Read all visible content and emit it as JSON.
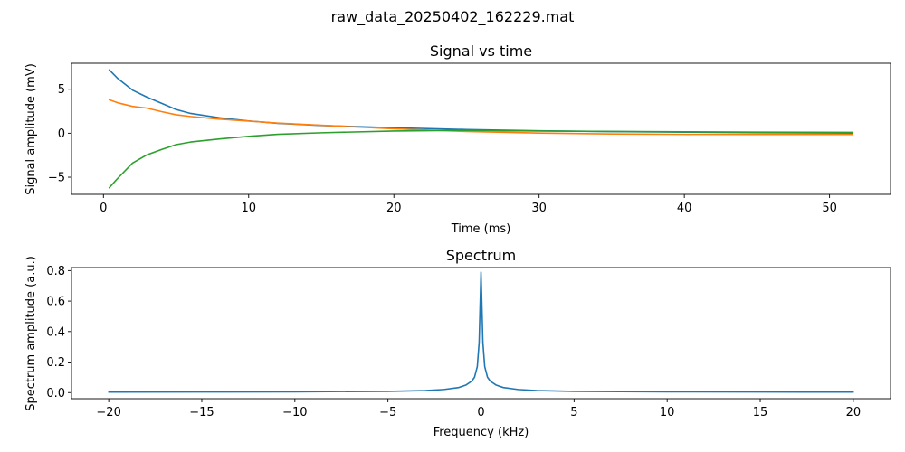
{
  "figure": {
    "suptitle": "raw_data_20250402_162229.mat"
  },
  "chart_data": [
    {
      "type": "line",
      "title": "Signal vs time",
      "xlabel": "Time (ms)",
      "ylabel": "Signal amplitude (mV)",
      "xlim": [
        -2.2,
        54.2
      ],
      "ylim": [
        -6.95,
        7.95
      ],
      "xticks": [
        0,
        10,
        20,
        30,
        40,
        50
      ],
      "yticks": [
        -5,
        0,
        5
      ],
      "xtick_labels": [
        "0",
        "10",
        "20",
        "30",
        "40",
        "50"
      ],
      "ytick_labels": [
        "−5",
        "0",
        "5"
      ],
      "grid": false,
      "series": [
        {
          "color": "#1f77b4",
          "x": [
            0.4,
            1,
            2,
            3,
            4,
            5,
            6,
            8,
            10,
            12,
            15,
            20,
            25,
            30,
            35,
            40,
            45,
            51.6
          ],
          "y": [
            7.2,
            6.2,
            4.9,
            4.1,
            3.4,
            2.7,
            2.25,
            1.75,
            1.4,
            1.12,
            0.88,
            0.62,
            0.42,
            0.28,
            0.18,
            0.12,
            0.07,
            0.02
          ]
        },
        {
          "color": "#ff7f0e",
          "x": [
            0.4,
            1,
            2,
            3,
            4,
            5,
            6,
            8,
            10,
            12,
            15,
            20,
            25,
            30,
            35,
            40,
            45,
            51.6
          ],
          "y": [
            3.8,
            3.45,
            3.05,
            2.85,
            2.45,
            2.1,
            1.9,
            1.6,
            1.38,
            1.15,
            0.9,
            0.5,
            0.2,
            0.02,
            -0.08,
            -0.13,
            -0.14,
            -0.14
          ]
        },
        {
          "color": "#2ca02c",
          "x": [
            0.4,
            1,
            2,
            3,
            4,
            5,
            6,
            8,
            10,
            12,
            15,
            20,
            25,
            30,
            35,
            40,
            45,
            51.6
          ],
          "y": [
            -6.2,
            -5.1,
            -3.4,
            -2.45,
            -1.85,
            -1.3,
            -1.0,
            -0.65,
            -0.35,
            -0.12,
            0.05,
            0.25,
            0.33,
            0.25,
            0.2,
            0.16,
            0.12,
            0.1
          ]
        }
      ]
    },
    {
      "type": "line",
      "title": "Spectrum",
      "xlabel": "Frequency (kHz)",
      "ylabel": "Spectrum amplitude (a.u.)",
      "xlim": [
        -22,
        22
      ],
      "ylim": [
        -0.04,
        0.82
      ],
      "xticks": [
        -20,
        -15,
        -10,
        -5,
        0,
        5,
        10,
        15,
        20
      ],
      "yticks": [
        0,
        0.2,
        0.4,
        0.6,
        0.8
      ],
      "xtick_labels": [
        "−20",
        "−15",
        "−10",
        "−5",
        "0",
        "5",
        "10",
        "15",
        "20"
      ],
      "ytick_labels": [
        "0.0",
        "0.2",
        "0.4",
        "0.6",
        "0.8"
      ],
      "grid": false,
      "series": [
        {
          "color": "#1f77b4",
          "x": [
            -20,
            -15,
            -10,
            -5,
            -3,
            -2,
            -1.2,
            -0.8,
            -0.5,
            -0.35,
            -0.2,
            -0.1,
            0,
            0.1,
            0.2,
            0.35,
            0.5,
            0.8,
            1.2,
            2,
            3,
            5,
            10,
            15,
            20
          ],
          "y": [
            0.003,
            0.004,
            0.005,
            0.008,
            0.013,
            0.02,
            0.033,
            0.05,
            0.075,
            0.1,
            0.17,
            0.33,
            0.79,
            0.33,
            0.17,
            0.1,
            0.075,
            0.05,
            0.033,
            0.02,
            0.013,
            0.008,
            0.005,
            0.004,
            0.003
          ]
        }
      ]
    }
  ]
}
